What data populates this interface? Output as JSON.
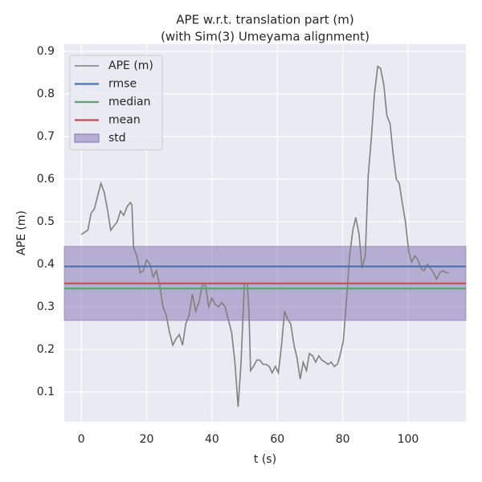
{
  "chart_data": {
    "type": "line",
    "title": "APE w.r.t. translation part (m)",
    "subtitle": "(with Sim(3) Umeyama alignment)",
    "xlabel": "t (s)",
    "ylabel": "APE (m)",
    "xlim": [
      -5.2,
      117.7
    ],
    "ylim": [
      0.03,
      0.917
    ],
    "xticks": [
      0,
      20,
      40,
      60,
      80,
      100
    ],
    "yticks": [
      0.1,
      0.2,
      0.3,
      0.4,
      0.5,
      0.6,
      0.7,
      0.8,
      0.9
    ],
    "grid": true,
    "legend": "upper left",
    "x": [
      0,
      1,
      2,
      3,
      4,
      5,
      6,
      7,
      8,
      9,
      10,
      11,
      12,
      13,
      14,
      15,
      15.5,
      16,
      17,
      18,
      19,
      20,
      21,
      22,
      23,
      24,
      25,
      26,
      27,
      28,
      29,
      30,
      31,
      32,
      33,
      34,
      35,
      36,
      37,
      38,
      39,
      40,
      41,
      42,
      43,
      44,
      45,
      46,
      47,
      48,
      48.9,
      49.9,
      50.8,
      51.3,
      51.8,
      52.7,
      53.7,
      54.6,
      55.6,
      56.5,
      57.5,
      58.4,
      59.4,
      60.3,
      61.3,
      62.2,
      63.2,
      64.1,
      65.1,
      66.0,
      67.0,
      67.9,
      68.9,
      69.8,
      70.8,
      71.7,
      72.7,
      73.6,
      74.6,
      75.5,
      76.5,
      77.4,
      78.4,
      79.3,
      80.2,
      81.2,
      82.1,
      83.1,
      84.0,
      85.0,
      85.9,
      86.9,
      87.8,
      88.8,
      89.7,
      90.7,
      91.6,
      92.6,
      93.5,
      94.5,
      95.4,
      96.4,
      97.3,
      98.3,
      99.2,
      100.2,
      101.1,
      102.1,
      103.0,
      104.0,
      104.9,
      105.9,
      106.8,
      107.8,
      108.7,
      109.7,
      110.6,
      111.6,
      112.5
    ],
    "series": [
      {
        "name": "APE (m)",
        "color": "#808080",
        "values": [
          0.47,
          0.475,
          0.48,
          0.52,
          0.53,
          0.56,
          0.59,
          0.57,
          0.53,
          0.48,
          0.49,
          0.5,
          0.525,
          0.515,
          0.535,
          0.545,
          0.54,
          0.44,
          0.42,
          0.38,
          0.385,
          0.41,
          0.4,
          0.37,
          0.385,
          0.35,
          0.3,
          0.28,
          0.24,
          0.21,
          0.225,
          0.235,
          0.21,
          0.26,
          0.28,
          0.33,
          0.29,
          0.31,
          0.35,
          0.35,
          0.3,
          0.32,
          0.305,
          0.3,
          0.31,
          0.3,
          0.27,
          0.24,
          0.17,
          0.065,
          0.17,
          0.355,
          0.355,
          0.29,
          0.15,
          0.16,
          0.175,
          0.175,
          0.165,
          0.165,
          0.16,
          0.145,
          0.16,
          0.145,
          0.21,
          0.29,
          0.27,
          0.26,
          0.21,
          0.18,
          0.13,
          0.17,
          0.15,
          0.19,
          0.185,
          0.17,
          0.185,
          0.175,
          0.17,
          0.165,
          0.17,
          0.16,
          0.165,
          0.19,
          0.22,
          0.32,
          0.42,
          0.48,
          0.51,
          0.47,
          0.39,
          0.42,
          0.61,
          0.7,
          0.8,
          0.865,
          0.86,
          0.82,
          0.75,
          0.73,
          0.66,
          0.6,
          0.59,
          0.54,
          0.5,
          0.43,
          0.405,
          0.42,
          0.41,
          0.39,
          0.385,
          0.4,
          0.39,
          0.38,
          0.365,
          0.38,
          0.385,
          0.38,
          0.38
        ]
      }
    ],
    "hlines": [
      {
        "name": "rmse",
        "color": "#4c72b0",
        "value": 0.395
      },
      {
        "name": "median",
        "color": "#55a868",
        "value": 0.343
      },
      {
        "name": "mean",
        "color": "#c44e52",
        "value": 0.355
      }
    ],
    "band": {
      "name": "std",
      "color": "#8172b2",
      "value": 0.087
    }
  }
}
